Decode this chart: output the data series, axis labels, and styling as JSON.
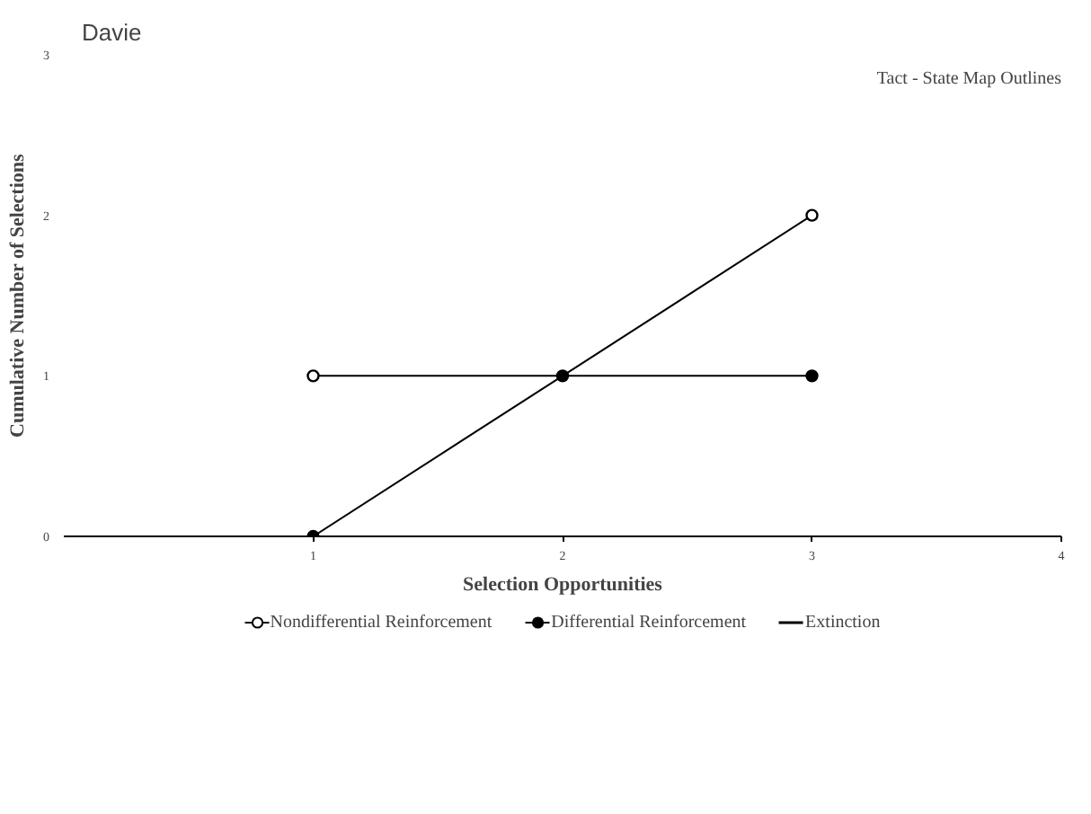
{
  "chart_data": {
    "type": "scatter",
    "title": "Davie",
    "xlabel": "Selection Opportunities",
    "ylabel": "Cumulative Number of Selections",
    "annotations": [
      "Tact - State Map Outlines"
    ],
    "xlim": [
      0,
      4
    ],
    "xticks": [
      1,
      2,
      3,
      4
    ],
    "ylim": [
      0,
      3
    ],
    "yticks": [
      0,
      1,
      2,
      3
    ],
    "grid": false,
    "legend": "bottom",
    "marker": "circle",
    "series": [
      {
        "type": "line",
        "color": "#000000",
        "x": [
          1,
          2,
          3
        ],
        "values": [
          1,
          1,
          1
        ],
        "marker": "none"
      },
      {
        "type": "line",
        "color": "#000000",
        "x": [
          1,
          2,
          3
        ],
        "values": [
          0,
          1,
          2
        ],
        "marker": "none"
      },
      {
        "name": "Nondifferential Reinforcement",
        "color": "#ffffff",
        "x": [
          1,
          3
        ],
        "values": [
          1,
          2
        ]
      },
      {
        "name": "Differential Reinforcement",
        "color": "#000000",
        "x": [
          1,
          2,
          3
        ],
        "values": [
          0,
          1,
          1
        ]
      },
      {
        "name": "Extinction",
        "type": "line",
        "color": "#000000",
        "marker": "none"
      }
    ]
  }
}
